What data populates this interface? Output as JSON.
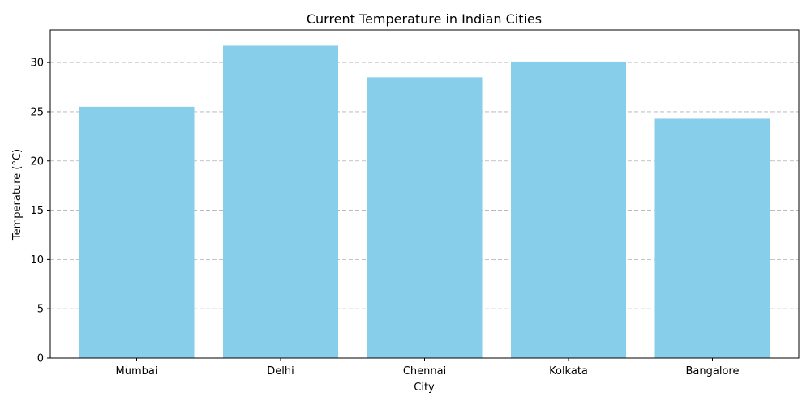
{
  "chart_data": {
    "type": "bar",
    "title": "Current Temperature in Indian Cities",
    "xlabel": "City",
    "ylabel": "Temperature (°C)",
    "categories": [
      "Mumbai",
      "Delhi",
      "Chennai",
      "Kolkata",
      "Bangalore"
    ],
    "values": [
      25.5,
      31.7,
      28.5,
      30.1,
      24.3
    ],
    "ylim": [
      0,
      33.3
    ],
    "yticks": [
      0,
      5,
      10,
      15,
      20,
      25,
      30
    ],
    "grid": "y-dashed",
    "bar_color": "#87CEEB",
    "legend": "none"
  }
}
